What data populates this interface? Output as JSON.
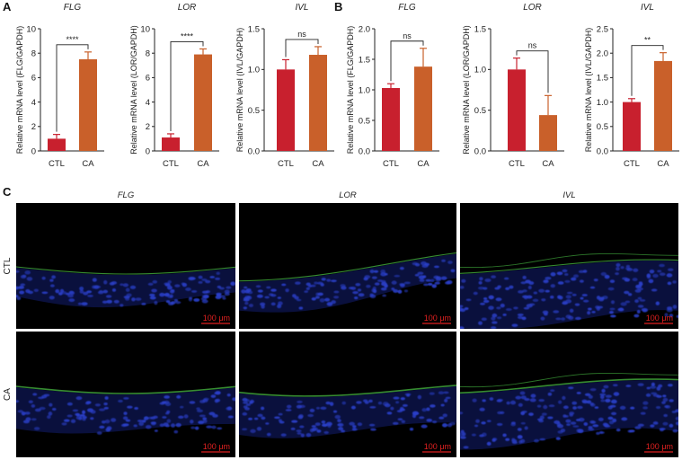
{
  "panels": {
    "A": "A",
    "B": "B",
    "C": "C"
  },
  "colors": {
    "ctl": "#c8202e",
    "ca": "#c9602a",
    "nuclei": "#2a3fc8",
    "stain": "#3fa53a",
    "scale": "#e02020"
  },
  "chart_data": [
    {
      "type": "bar",
      "panel": "A",
      "title": "FLG",
      "ylabel": "Relative mRNA level (FLG/GAPDH)",
      "categories": [
        "CTL",
        "CA"
      ],
      "values": [
        1.0,
        7.5
      ],
      "errors": [
        0.35,
        0.6
      ],
      "ylim": [
        0,
        10
      ],
      "yticks": [
        "0",
        "2",
        "4",
        "6",
        "8",
        "10"
      ],
      "significance": "****"
    },
    {
      "type": "bar",
      "panel": "A",
      "title": "LOR",
      "ylabel": "Relative mRNA level (LOR/GAPDH)",
      "categories": [
        "CTL",
        "CA"
      ],
      "values": [
        1.1,
        7.9
      ],
      "errors": [
        0.3,
        0.45
      ],
      "ylim": [
        0,
        10
      ],
      "yticks": [
        "0",
        "2",
        "4",
        "6",
        "8",
        "10"
      ],
      "significance": "****"
    },
    {
      "type": "bar",
      "panel": "A",
      "title": "IVL",
      "ylabel": "Relative mRNA level (IVL/GAPDH)",
      "categories": [
        "CTL",
        "CA"
      ],
      "values": [
        1.0,
        1.18
      ],
      "errors": [
        0.12,
        0.1
      ],
      "ylim": [
        0,
        1.5
      ],
      "yticks": [
        "0.0",
        "0.5",
        "1.0",
        "1.5"
      ],
      "significance": "ns"
    },
    {
      "type": "bar",
      "panel": "B",
      "title": "FLG",
      "ylabel": "Relative mRNA level (FLG/GAPDH)",
      "categories": [
        "CTL",
        "CA"
      ],
      "values": [
        1.03,
        1.38
      ],
      "errors": [
        0.07,
        0.3
      ],
      "ylim": [
        0,
        2.0
      ],
      "yticks": [
        "0.0",
        "0.5",
        "1.0",
        "1.5",
        "2.0"
      ],
      "significance": "ns"
    },
    {
      "type": "bar",
      "panel": "B",
      "title": "LOR",
      "ylabel": "Relative mRNA level (LOR/GAPDH)",
      "categories": [
        "CTL",
        "CA"
      ],
      "values": [
        1.0,
        0.44
      ],
      "errors": [
        0.14,
        0.24
      ],
      "ylim": [
        0,
        1.5
      ],
      "yticks": [
        "0.0",
        "0.5",
        "1.0",
        "1.5"
      ],
      "significance": "ns"
    },
    {
      "type": "bar",
      "panel": "B",
      "title": "IVL",
      "ylabel": "Relative mRNA level (IVL/GAPDH)",
      "categories": [
        "CTL",
        "CA"
      ],
      "values": [
        1.0,
        1.84
      ],
      "errors": [
        0.07,
        0.17
      ],
      "ylim": [
        0,
        2.5
      ],
      "yticks": [
        "0.0",
        "0.5",
        "1.0",
        "1.5",
        "2.0",
        "2.5"
      ],
      "significance": "**"
    }
  ],
  "micrographs": {
    "columns": [
      "FLG",
      "LOR",
      "IVL"
    ],
    "rows": [
      "CTL",
      "CA"
    ],
    "scale_bar": "100 μm"
  }
}
